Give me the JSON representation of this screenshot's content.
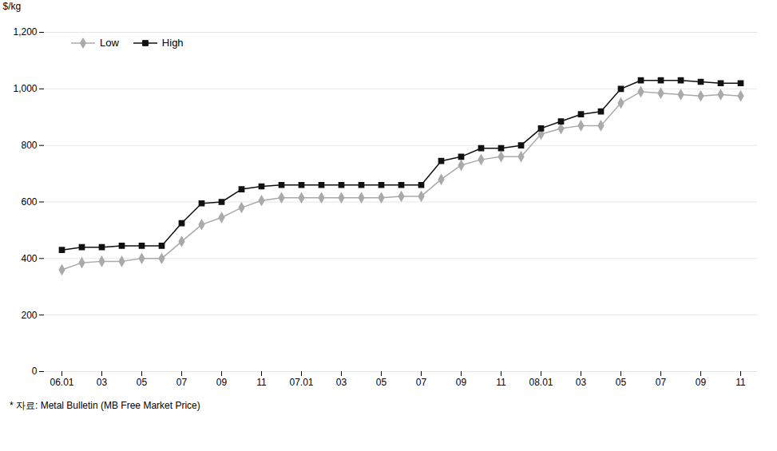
{
  "chart_data": {
    "type": "line",
    "categories": [
      "06.01",
      null,
      "03",
      null,
      "05",
      null,
      "07",
      null,
      "09",
      null,
      "11",
      null,
      "07.01",
      null,
      "03",
      null,
      "05",
      null,
      "07",
      null,
      "09",
      null,
      "11",
      null,
      "08.01",
      null,
      "03",
      null,
      "05",
      null,
      "07",
      null,
      "09",
      null,
      "11"
    ],
    "series": [
      {
        "name": "Low",
        "color": "#aaaaaa",
        "marker": "diamond",
        "values": [
          360,
          385,
          390,
          390,
          400,
          400,
          460,
          520,
          545,
          580,
          605,
          615,
          615,
          615,
          615,
          615,
          615,
          620,
          620,
          680,
          730,
          750,
          760,
          760,
          840,
          860,
          870,
          870,
          950,
          990,
          985,
          980,
          975,
          980,
          975
        ]
      },
      {
        "name": "High",
        "color": "#111111",
        "marker": "square",
        "values": [
          430,
          440,
          440,
          445,
          445,
          445,
          525,
          595,
          600,
          645,
          655,
          660,
          660,
          660,
          660,
          660,
          660,
          660,
          660,
          745,
          760,
          790,
          790,
          800,
          860,
          885,
          910,
          920,
          1000,
          1030,
          1030,
          1030,
          1025,
          1020,
          1020
        ]
      }
    ],
    "ylabel": "$/kg",
    "ylim": [
      0,
      1200
    ],
    "yticks": [
      0,
      200,
      400,
      600,
      800,
      1000,
      1200
    ],
    "grid": true,
    "legend": "upper left",
    "annotations": [
      "* 자료: Metal Bulletin (MB Free Market Price)"
    ]
  }
}
